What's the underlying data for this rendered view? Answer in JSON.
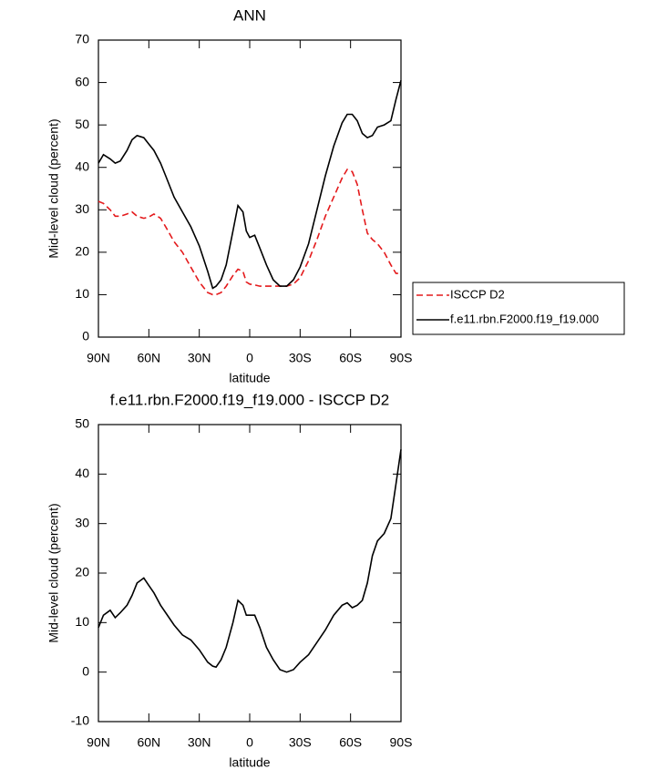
{
  "chart_data": [
    {
      "type": "line",
      "title": "ANN",
      "xlabel": "latitude",
      "ylabel": "Mid-level cloud (percent)",
      "x": [
        90,
        87,
        83,
        80,
        77,
        73,
        70,
        67,
        63,
        60,
        57,
        53,
        50,
        45,
        40,
        35,
        30,
        25,
        22,
        20,
        17,
        14,
        10,
        7,
        4,
        2,
        0,
        -3,
        -6,
        -10,
        -14,
        -18,
        -22,
        -26,
        -30,
        -35,
        -40,
        -45,
        -50,
        -55,
        -58,
        -61,
        -64,
        -67,
        -70,
        -73,
        -76,
        -80,
        -84,
        -87,
        -90
      ],
      "series": [
        {
          "name": "ISCCP D2",
          "color": "#e41a1c",
          "dash": true,
          "values": [
            32,
            31.5,
            30,
            28.5,
            28.5,
            29,
            29.5,
            28.5,
            28,
            28.3,
            29,
            28,
            26,
            22.5,
            20,
            16.5,
            13,
            10.5,
            10,
            10,
            10.5,
            12,
            14.5,
            16,
            15.5,
            13,
            12.5,
            12.3,
            12,
            12,
            12,
            12,
            12,
            12.5,
            14,
            18,
            23,
            28.5,
            33,
            37.5,
            39.5,
            39,
            36,
            30,
            24.5,
            23,
            22,
            20,
            17,
            15,
            15
          ]
        },
        {
          "name": "f.e11.rbn.F2000.f19_f19.000",
          "color": "#000000",
          "dash": false,
          "values": [
            41,
            43,
            42,
            41,
            41.5,
            44,
            46.5,
            47.5,
            47,
            45.5,
            44,
            41,
            38,
            33,
            29.5,
            26,
            21.5,
            15.5,
            11.5,
            12,
            13.5,
            17,
            25,
            31,
            29.5,
            25,
            23.5,
            24,
            21,
            17,
            13.5,
            12,
            12,
            13.5,
            16.5,
            22,
            30,
            38,
            45,
            50.5,
            52.5,
            52.5,
            51,
            48,
            47,
            47.5,
            49.5,
            50,
            51,
            56,
            60.5
          ]
        }
      ],
      "xlim": [
        90,
        -90
      ],
      "xticks": [
        {
          "value": 90,
          "label": "90N"
        },
        {
          "value": 60,
          "label": "60N"
        },
        {
          "value": 30,
          "label": "30N"
        },
        0,
        {
          "value": -30,
          "label": "30S"
        },
        {
          "value": -60,
          "label": "60S"
        },
        {
          "value": -90,
          "label": "90S"
        }
      ],
      "ylim": [
        0,
        70
      ],
      "yticks": [
        0,
        10,
        20,
        30,
        40,
        50,
        60,
        70
      ],
      "grid": false,
      "legend": "right"
    },
    {
      "type": "line",
      "title": "f.e11.rbn.F2000.f19_f19.000 - ISCCP D2",
      "xlabel": "latitude",
      "ylabel": "Mid-level cloud (percent)",
      "x": [
        90,
        87,
        83,
        80,
        77,
        73,
        70,
        67,
        63,
        60,
        57,
        53,
        50,
        45,
        40,
        35,
        30,
        25,
        22,
        20,
        17,
        14,
        10,
        7,
        4,
        2,
        0,
        -3,
        -6,
        -10,
        -14,
        -18,
        -22,
        -26,
        -30,
        -35,
        -40,
        -45,
        -50,
        -55,
        -58,
        -61,
        -64,
        -67,
        -70,
        -73,
        -76,
        -80,
        -84,
        -87,
        -90
      ],
      "series": [
        {
          "color": "#000000",
          "dash": false,
          "values": [
            9,
            11.5,
            12.5,
            11,
            12,
            13.5,
            15.5,
            18,
            19,
            17.5,
            16,
            13.5,
            12,
            9.5,
            7.5,
            6.5,
            4.5,
            2,
            1.2,
            1,
            2.5,
            5,
            10,
            14.5,
            13.5,
            11.5,
            11.5,
            11.5,
            9,
            5,
            2.5,
            0.5,
            0,
            0.5,
            2,
            3.5,
            6,
            8.5,
            11.5,
            13.5,
            14,
            13,
            13.5,
            14.5,
            18,
            23.5,
            26.5,
            28,
            31,
            38,
            45
          ]
        }
      ],
      "xlim": [
        90,
        -90
      ],
      "xticks": [
        {
          "value": 90,
          "label": "90N"
        },
        {
          "value": 60,
          "label": "60N"
        },
        {
          "value": 30,
          "label": "30N"
        },
        0,
        {
          "value": -30,
          "label": "30S"
        },
        {
          "value": -60,
          "label": "60S"
        },
        {
          "value": -90,
          "label": "90S"
        }
      ],
      "ylim": [
        -10,
        50
      ],
      "yticks": [
        -10,
        0,
        10,
        20,
        30,
        40,
        50
      ],
      "grid": false
    }
  ]
}
